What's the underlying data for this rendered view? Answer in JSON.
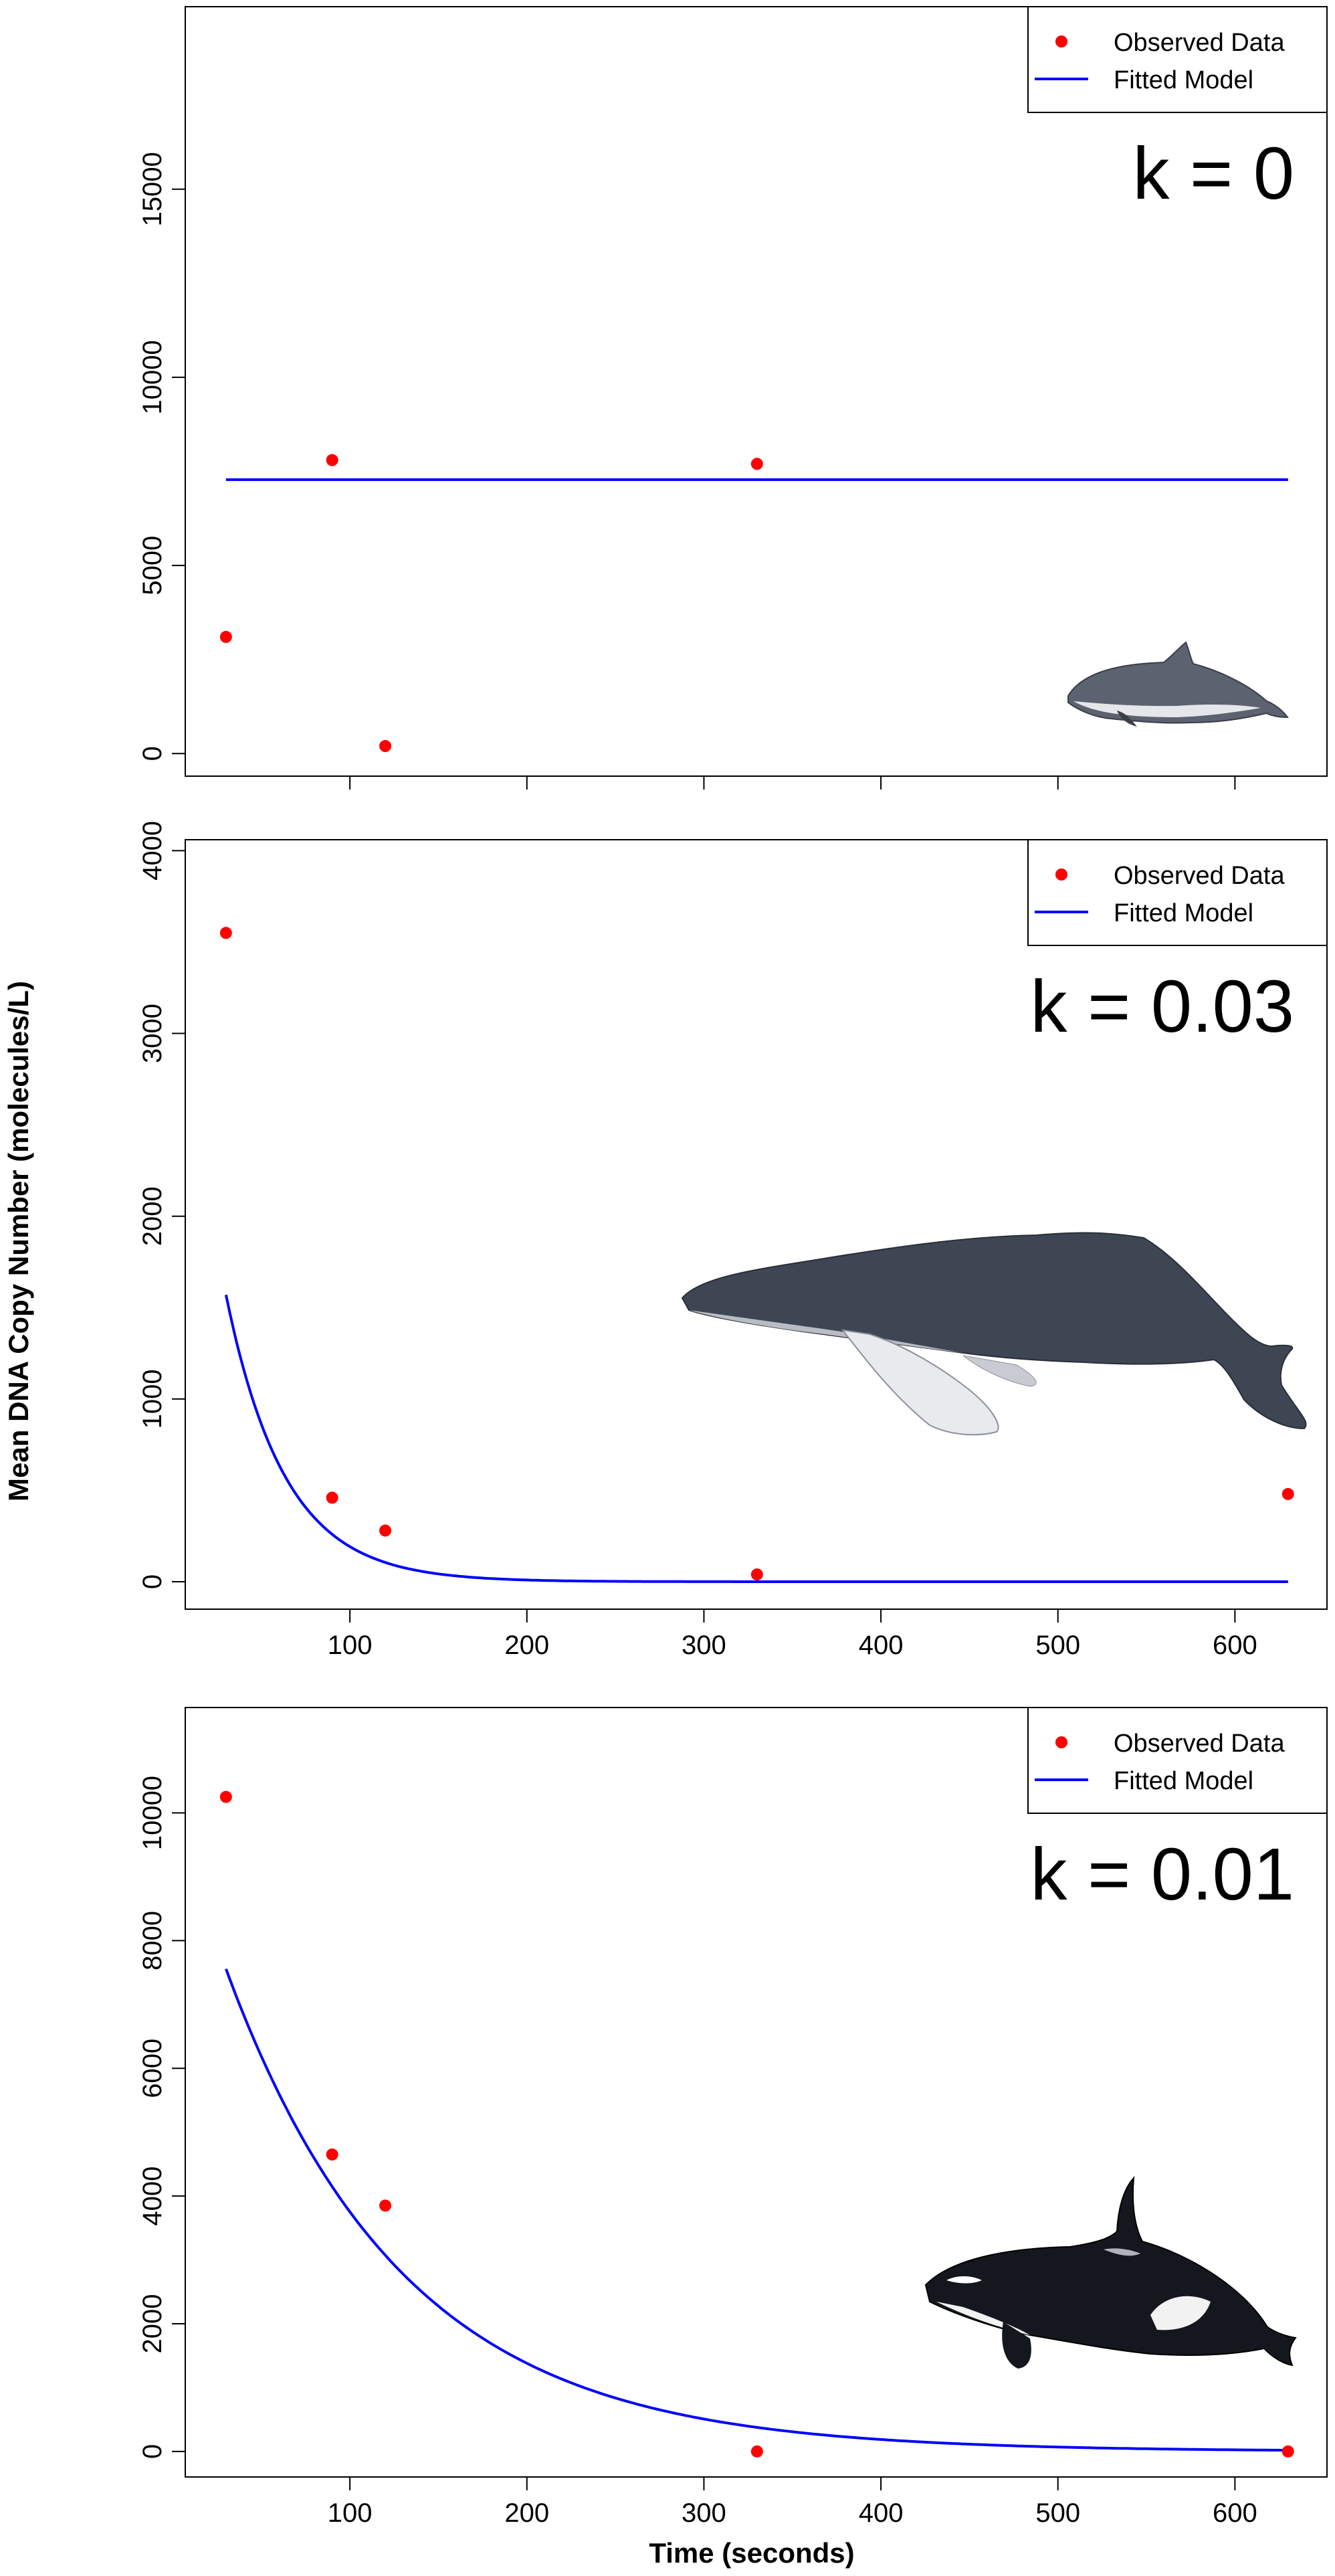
{
  "figure": {
    "ylabel": "Mean DNA Copy Number (molecules/L)",
    "xlabel": "Time (seconds)"
  },
  "legend": {
    "observed_label": "Observed Data",
    "fitted_label": "Fitted Model"
  },
  "colors": {
    "observed": "#ff0000",
    "fitted": "#0000ff"
  },
  "chart_data": [
    {
      "type": "scatter",
      "k_label": "k = 0",
      "k": 0,
      "animal_icon": "harbour-porpoise-icon",
      "x_ticks": [
        100,
        200,
        300,
        400,
        500,
        600
      ],
      "x_tick_labels_shown": false,
      "y_ticks": [
        0,
        5000,
        10000,
        15000
      ],
      "xlim": [
        7,
        652
      ],
      "ylim": [
        -600,
        19850
      ],
      "series": [
        {
          "name": "Observed Data",
          "kind": "points",
          "x": [
            30,
            90,
            120,
            330
          ],
          "y": [
            3100,
            7800,
            200,
            7700
          ]
        },
        {
          "name": "Fitted Model",
          "kind": "curve",
          "model": {
            "C0": 7280,
            "k": 0,
            "x_range": [
              30,
              630
            ]
          }
        }
      ],
      "legend_position": "top-right"
    },
    {
      "type": "scatter",
      "k_label": "k = 0.03",
      "k": 0.03,
      "animal_icon": "humpback-whale-icon",
      "x_ticks": [
        100,
        200,
        300,
        400,
        500,
        600
      ],
      "x_tick_labels_shown": true,
      "y_ticks": [
        0,
        1000,
        2000,
        3000,
        4000
      ],
      "xlim": [
        7,
        652
      ],
      "ylim": [
        -150,
        4060
      ],
      "series": [
        {
          "name": "Observed Data",
          "kind": "points",
          "x": [
            30,
            90,
            120,
            330,
            630
          ],
          "y": [
            3550,
            460,
            280,
            40,
            480
          ]
        },
        {
          "name": "Fitted Model",
          "kind": "curve",
          "model": {
            "C0": 3860,
            "k": 0.03,
            "x_range": [
              30,
              630
            ]
          }
        }
      ],
      "legend_position": "top-right"
    },
    {
      "type": "scatter",
      "k_label": "k = 0.01",
      "k": 0.01,
      "animal_icon": "killer-whale-icon",
      "x_ticks": [
        100,
        200,
        300,
        400,
        500,
        600
      ],
      "x_tick_labels_shown": true,
      "y_ticks": [
        0,
        2000,
        4000,
        6000,
        8000,
        10000
      ],
      "xlim": [
        7,
        652
      ],
      "ylim": [
        -400,
        11650
      ],
      "series": [
        {
          "name": "Observed Data",
          "kind": "points",
          "x": [
            30,
            90,
            120,
            330,
            630
          ],
          "y": [
            10250,
            4650,
            3850,
            0,
            0
          ]
        },
        {
          "name": "Fitted Model",
          "kind": "curve",
          "model": {
            "C0": 10200,
            "k": 0.01,
            "x_range": [
              30,
              630
            ]
          }
        }
      ],
      "legend_position": "top-right"
    }
  ]
}
